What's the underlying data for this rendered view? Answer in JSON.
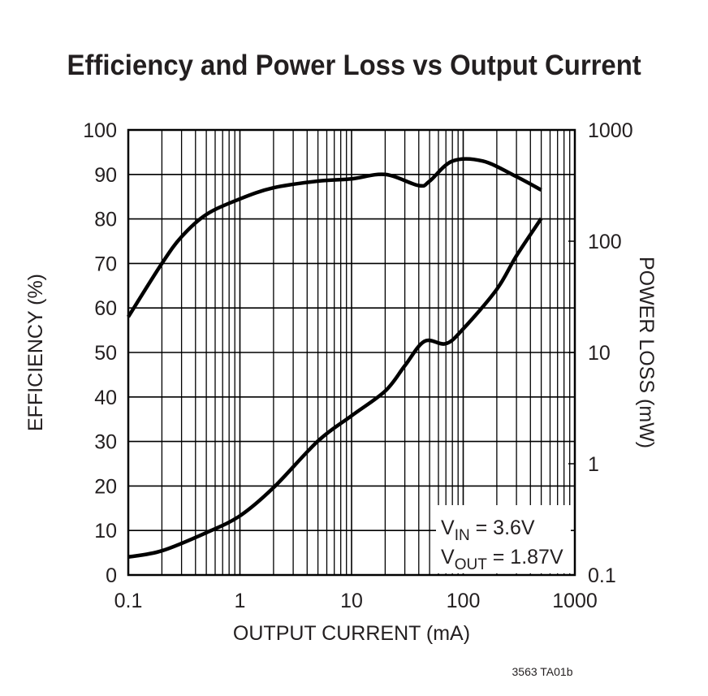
{
  "chart_data": {
    "type": "line",
    "title": "Efficiency and Power Loss vs Output Current",
    "xlabel": "OUTPUT CURRENT (mA)",
    "ylabel": "EFFICIENCY (%)",
    "y2label": "POWER LOSS (mW)",
    "xscale": "log",
    "xlim": [
      0.1,
      1000
    ],
    "ylim": [
      0,
      100
    ],
    "y2scale": "log",
    "y2lim": [
      0.1,
      1000
    ],
    "grid": true,
    "xticks": [
      "0.1",
      "1",
      "10",
      "100",
      "1000"
    ],
    "yticks": [
      "0",
      "10",
      "20",
      "30",
      "40",
      "50",
      "60",
      "70",
      "80",
      "90",
      "100"
    ],
    "y2ticks": [
      "0.1",
      "1",
      "10",
      "100",
      "1000"
    ],
    "annotation": {
      "line1_main": "V",
      "line1_sub": "IN",
      "line1_rest": " = 3.6V",
      "line2_main": "V",
      "line2_sub": "OUT",
      "line2_rest": " = 1.87V"
    },
    "series": [
      {
        "axis": "left",
        "x": [
          0.1,
          0.2,
          0.3,
          0.5,
          1,
          2,
          5,
          10,
          20,
          40,
          50,
          80,
          150,
          300,
          500
        ],
        "y": [
          58,
          70,
          76,
          81,
          84.5,
          87,
          88.5,
          89,
          90,
          87.5,
          88.5,
          93,
          93,
          89.5,
          86.5
        ]
      },
      {
        "axis": "right",
        "x": [
          0.1,
          0.2,
          0.5,
          1,
          2,
          5,
          10,
          20,
          30,
          45,
          70,
          100,
          200,
          300,
          500
        ],
        "y": [
          0.145,
          0.165,
          0.24,
          0.34,
          0.61,
          1.6,
          2.7,
          4.5,
          7.6,
          12.6,
          12,
          16.3,
          37,
          74,
          160
        ]
      }
    ],
    "line_color": "#000000"
  },
  "footnote": "3563 TA01b"
}
